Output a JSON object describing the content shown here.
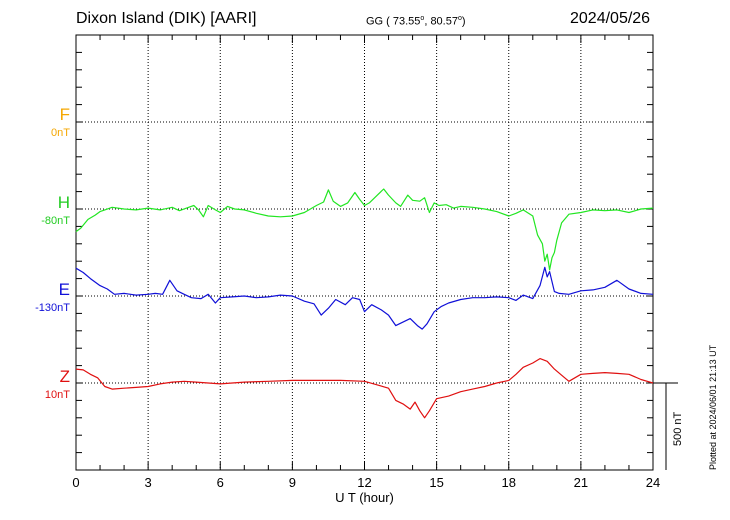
{
  "header": {
    "station": "Dixon Island (DIK)  [AARI]",
    "coords_prefix": "GG ( 73.55",
    "coords_lon": ",  80.57",
    "coords_suffix": ")",
    "degree_mark": "o",
    "date": "2024/05/26"
  },
  "footer": {
    "plotted": "Plotted at 2024/06/01 21:13 UT",
    "scale_label": "500 nT"
  },
  "colors": {
    "F": "#f5a700",
    "H": "#22e622",
    "E": "#1010d8",
    "Z": "#e01010",
    "grid": "#000000"
  },
  "chart_data": {
    "type": "line",
    "xlabel": "U T (hour)",
    "xlim": [
      0,
      24
    ],
    "xticks": [
      "0",
      "3",
      "6",
      "9",
      "12",
      "15",
      "18",
      "21",
      "24"
    ],
    "scale_nT": 500,
    "series": [
      {
        "name": "F",
        "offset_label": "0nT",
        "baseline_row": 1,
        "x": [],
        "values": []
      },
      {
        "name": "H",
        "offset_label": "-80nT",
        "baseline_row": 2,
        "x": [
          0,
          0.2,
          0.5,
          0.8,
          1.0,
          1.2,
          1.5,
          2.0,
          2.5,
          3.0,
          3.5,
          4.0,
          4.3,
          4.6,
          4.9,
          5.1,
          5.3,
          5.5,
          5.8,
          6.0,
          6.3,
          6.6,
          7.0,
          7.5,
          8.0,
          8.5,
          9.0,
          9.5,
          10.0,
          10.3,
          10.5,
          10.7,
          11.0,
          11.3,
          11.6,
          11.8,
          12.0,
          12.2,
          12.5,
          12.8,
          13.0,
          13.3,
          13.5,
          13.8,
          14.0,
          14.3,
          14.5,
          14.7,
          14.9,
          15.1,
          15.4,
          15.7,
          16.0,
          16.5,
          17.0,
          17.5,
          18.0,
          18.3,
          18.6,
          19.0,
          19.2,
          19.4,
          19.5,
          19.6,
          19.7,
          19.8,
          19.9,
          20.0,
          20.2,
          20.5,
          21.0,
          21.5,
          22.0,
          22.5,
          23.0,
          23.5,
          24.0
        ],
        "values": [
          -130,
          -110,
          -60,
          -35,
          -15,
          -5,
          10,
          0,
          -5,
          5,
          -5,
          10,
          -10,
          5,
          20,
          -5,
          -45,
          20,
          -5,
          -20,
          15,
          0,
          -5,
          -25,
          -40,
          -45,
          -40,
          -20,
          20,
          40,
          110,
          45,
          15,
          35,
          95,
          55,
          20,
          35,
          75,
          115,
          80,
          35,
          15,
          80,
          50,
          45,
          65,
          -20,
          35,
          20,
          25,
          5,
          15,
          10,
          0,
          -15,
          -40,
          -25,
          -5,
          -40,
          -150,
          -200,
          -300,
          -260,
          -350,
          -280,
          -250,
          -180,
          -80,
          -30,
          -20,
          -5,
          -10,
          -5,
          -20,
          0,
          5
        ]
      },
      {
        "name": "E",
        "offset_label": "-130nT",
        "baseline_row": 3,
        "x": [
          0,
          0.3,
          0.6,
          1.0,
          1.3,
          1.6,
          2.0,
          2.5,
          3.0,
          3.3,
          3.6,
          3.9,
          4.2,
          4.5,
          4.8,
          5.2,
          5.5,
          5.8,
          6.0,
          6.5,
          7.0,
          7.5,
          8.0,
          8.5,
          9.0,
          9.5,
          9.9,
          10.2,
          10.5,
          10.8,
          11.2,
          11.5,
          11.8,
          12.0,
          12.3,
          12.7,
          13.0,
          13.3,
          13.6,
          13.9,
          14.2,
          14.4,
          14.6,
          14.9,
          15.2,
          15.5,
          16.0,
          16.5,
          17.0,
          17.5,
          18.0,
          18.3,
          18.6,
          19.0,
          19.3,
          19.5,
          19.6,
          19.7,
          19.9,
          20.1,
          20.5,
          21.0,
          21.5,
          22.0,
          22.5,
          23.0,
          23.5,
          24.0
        ],
        "values": [
          160,
          135,
          100,
          60,
          40,
          10,
          15,
          5,
          10,
          15,
          10,
          90,
          30,
          10,
          -10,
          -15,
          10,
          -40,
          -10,
          -5,
          0,
          -10,
          -5,
          5,
          0,
          -30,
          -45,
          -110,
          -70,
          -20,
          -50,
          -10,
          -20,
          -90,
          -50,
          -80,
          -110,
          -170,
          -150,
          -130,
          -170,
          -190,
          -160,
          -90,
          -60,
          -40,
          -20,
          -10,
          -10,
          -5,
          -10,
          -25,
          5,
          -15,
          60,
          165,
          110,
          140,
          25,
          15,
          10,
          30,
          35,
          50,
          90,
          40,
          15,
          10
        ]
      },
      {
        "name": "Z",
        "offset_label": "10nT",
        "baseline_row": 4,
        "x": [
          0,
          0.3,
          0.6,
          0.9,
          1.2,
          1.5,
          2.0,
          2.5,
          3.0,
          3.5,
          4.0,
          4.5,
          5.0,
          5.5,
          6.0,
          7.0,
          8.0,
          9.0,
          10.0,
          11.0,
          12.0,
          12.5,
          13.0,
          13.3,
          13.6,
          13.9,
          14.1,
          14.3,
          14.5,
          14.7,
          15.0,
          15.5,
          16.0,
          16.5,
          17.0,
          17.5,
          18.0,
          18.3,
          18.6,
          19.0,
          19.3,
          19.6,
          19.9,
          20.2,
          20.5,
          21.0,
          21.5,
          22.0,
          22.5,
          23.0,
          23.5,
          24.0
        ],
        "values": [
          80,
          75,
          50,
          30,
          -20,
          -35,
          -30,
          -25,
          -20,
          -5,
          5,
          10,
          5,
          0,
          -5,
          5,
          10,
          15,
          15,
          15,
          10,
          -10,
          -30,
          -100,
          -120,
          -150,
          -110,
          -160,
          -200,
          -160,
          -90,
          -75,
          -50,
          -35,
          -20,
          0,
          15,
          50,
          90,
          115,
          140,
          125,
          80,
          45,
          10,
          50,
          55,
          60,
          55,
          50,
          20,
          0
        ]
      }
    ]
  }
}
